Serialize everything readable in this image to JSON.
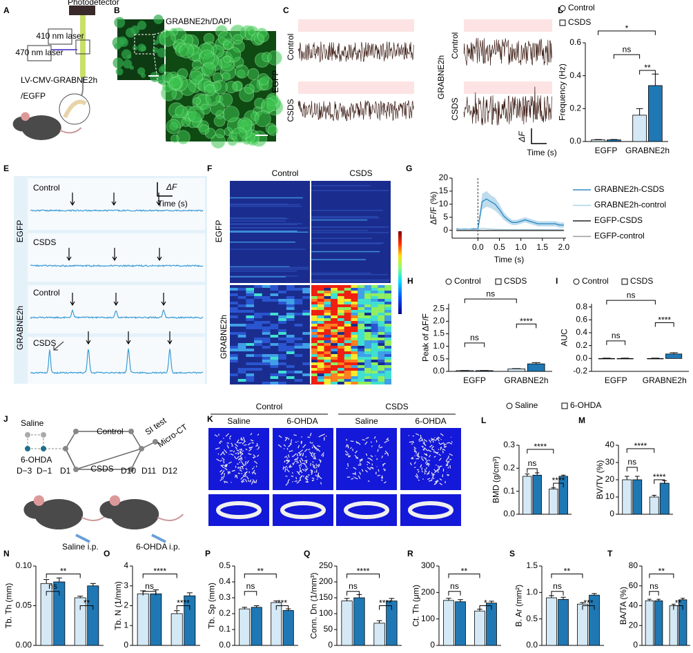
{
  "panel_letters": [
    "A",
    "B",
    "C",
    "D",
    "E",
    "F",
    "G",
    "H",
    "I",
    "J",
    "K",
    "L",
    "M",
    "N",
    "O",
    "P",
    "Q",
    "R",
    "S",
    "T"
  ],
  "panel_a": {
    "photodetector": "Photodetector",
    "laser_410": "410 nm laser",
    "laser_470": "470 nm laser",
    "construct": "LV-CMV-GRABNE2h",
    "control_construct": "/EGFP"
  },
  "panel_b": {
    "sensor": "GRABNE2h",
    "stain": "/DAPI"
  },
  "panel_c": {
    "groups": [
      "EGFP",
      "GRABNE2h"
    ],
    "rows": [
      "Control",
      "CSDS",
      "Control",
      "CSDS"
    ],
    "scale_y": "ΔF",
    "scale_x": "Time (s)"
  },
  "panel_e": {
    "groups": [
      "EGFP",
      "GRABNE2h"
    ],
    "rows": [
      "Control",
      "CSDS",
      "Control",
      "CSDS"
    ],
    "scale_y": "ΔF",
    "scale_x": "Time (s)"
  },
  "panel_f": {
    "columns": [
      "Control",
      "CSDS"
    ],
    "rows": [
      "EGFP",
      "GRABNE2h"
    ]
  },
  "panel_j": {
    "pretreatments": [
      "Saline",
      "6-OHDA"
    ],
    "arms": [
      "Control",
      "CSDS"
    ],
    "tests": [
      "SI test",
      "Micro-CT"
    ],
    "days": [
      "D−3",
      "D−1",
      "D1",
      "D10",
      "D11",
      "D12"
    ],
    "injections": [
      "Saline i.p.",
      "6-OHDA i.p."
    ]
  },
  "panel_k": {
    "groups": [
      "Control",
      "CSDS"
    ],
    "treatments": [
      "Saline",
      "6-OHDA",
      "Saline",
      "6-OHDA"
    ]
  },
  "chart_data": [
    {
      "type": "bar",
      "ylabel": "Frequency (Hz)",
      "categories": [
        "EGFP",
        "GRABNE2h"
      ],
      "series": [
        {
          "name": "Control",
          "color": "#d4e9f5",
          "values": [
            0.01,
            0.16
          ],
          "errors": [
            0.002,
            0.04
          ]
        },
        {
          "name": "CSDS",
          "color": "#1f78b4",
          "values": [
            0.01,
            0.34
          ],
          "errors": [
            0.002,
            0.07
          ]
        }
      ],
      "ylim": [
        0,
        0.6
      ],
      "yticks": [
        {
          "value": 0,
          "label": "0.0"
        },
        0.2,
        0.4,
        0.6
      ],
      "annotations": [
        "ns",
        "**",
        "*"
      ]
    },
    {
      "type": "line",
      "ylabel": "ΔF/F (%)",
      "xlabel": "Time (s)",
      "x": [
        -0.5,
        -0.4,
        -0.3,
        -0.2,
        -0.1,
        0,
        0.1,
        0.2,
        0.3,
        0.4,
        0.5,
        0.6,
        0.7,
        0.8,
        0.9,
        1,
        1.1,
        1.2,
        1.3,
        1.4,
        1.5,
        1.6,
        1.7,
        1.8,
        1.9,
        2
      ],
      "series": [
        {
          "name": "GRABNE2h-CSDS",
          "color": "#2b8cc4",
          "values": [
            0.5,
            0.3,
            0.4,
            0.3,
            0.5,
            0.4,
            11,
            12,
            11,
            10,
            8,
            5.5,
            4,
            3,
            3,
            3.5,
            4,
            3.5,
            3,
            2.5,
            2.5,
            2.5,
            2.5,
            2.5,
            2,
            2
          ],
          "errors": [
            0.5,
            0.5,
            0.5,
            0.5,
            0.5,
            0.5,
            3,
            3,
            2.5,
            2.5,
            2,
            1.5,
            1.2,
            1,
            1,
            1,
            1,
            1,
            1,
            1,
            1,
            1,
            1,
            1,
            1,
            1
          ]
        },
        {
          "name": "GRABNE2h-control",
          "color": "#a9d3ea",
          "values": [
            0.3,
            0.3,
            0.3,
            0.3,
            0.3,
            0.3,
            0.8,
            0.6,
            0.5,
            0.4,
            0.4,
            0.3,
            0.3,
            0.3,
            0.3,
            0.3,
            0.3,
            0.3,
            0.3,
            0.3,
            0.3,
            0.3,
            0.3,
            0.3,
            0.3,
            0.3
          ]
        },
        {
          "name": "EGFP-CSDS",
          "color": "#222222",
          "values": [
            0,
            0,
            0,
            0,
            0,
            0,
            0,
            0,
            0,
            0,
            0,
            0,
            0,
            0,
            0,
            0,
            0,
            0,
            0,
            0,
            0,
            0,
            0,
            0,
            0,
            0
          ]
        },
        {
          "name": "EGFP-control",
          "color": "#999999",
          "values": [
            -0.2,
            -0.2,
            -0.2,
            -0.2,
            -0.2,
            -0.2,
            -0.2,
            -0.2,
            -0.2,
            -0.2,
            -0.2,
            -0.2,
            -0.2,
            -0.2,
            -0.2,
            -0.2,
            -0.2,
            -0.2,
            -0.2,
            -0.2,
            -0.2,
            -0.2,
            -0.2,
            -0.2,
            -0.2,
            -0.2
          ]
        }
      ],
      "xlim": [
        -0.6,
        2.05
      ],
      "xticks": [
        {
          "value": 0,
          "label": "0.0"
        },
        0.5,
        {
          "value": 1,
          "label": "1.0"
        },
        1.5,
        {
          "value": 2,
          "label": "2.0"
        }
      ],
      "ylim": [
        -3,
        20
      ],
      "yticks": [
        0,
        5,
        10,
        15,
        20
      ]
    },
    {
      "type": "bar",
      "ylabel": "Peak of ΔF/F",
      "categories": [
        "EGFP",
        "GRABNE2h"
      ],
      "series": [
        {
          "name": "Control",
          "color": "#d4e9f5",
          "values": [
            0.03,
            0.1
          ],
          "errors": [
            0.005,
            0.01
          ]
        },
        {
          "name": "CSDS",
          "color": "#1f78b4",
          "values": [
            0.03,
            0.3
          ],
          "errors": [
            0.005,
            0.05
          ]
        }
      ],
      "ylim": [
        0,
        2.7
      ],
      "yticks": [
        {
          "value": 0,
          "label": "0.0"
        },
        0.5,
        {
          "value": 1,
          "label": "1.0"
        },
        1.5,
        {
          "value": 2,
          "label": "2.0"
        },
        2.5
      ],
      "annotations": [
        "ns",
        "****",
        "ns"
      ]
    },
    {
      "type": "bar",
      "ylabel": "AUC",
      "categories": [
        "EGFP",
        "GRABNE2h"
      ],
      "series": [
        {
          "name": "Control",
          "color": "#d4e9f5",
          "values": [
            0,
            0
          ],
          "errors": [
            0.005,
            0.005
          ]
        },
        {
          "name": "CSDS",
          "color": "#1f78b4",
          "values": [
            0,
            0.07
          ],
          "errors": [
            0.005,
            0.02
          ]
        }
      ],
      "ylim": [
        -0.2,
        0.85
      ],
      "yticks": [
        -0.2,
        {
          "value": 0,
          "label": "0.0"
        },
        0.2,
        0.4,
        0.6,
        0.8
      ],
      "annotations": [
        "ns",
        "****",
        "ns"
      ]
    },
    {
      "type": "bar",
      "ylabel": "BMD (g/cm³)",
      "categories": [
        null,
        null
      ],
      "series": [
        {
          "name": "Saline",
          "color": "#d4e9f5",
          "values": [
            0.165,
            0.11
          ],
          "errors": [
            0.01,
            0.005
          ]
        },
        {
          "name": "6-OHDA",
          "color": "#1f78b4",
          "values": [
            0.17,
            0.165
          ],
          "errors": [
            0.01,
            0.005
          ]
        }
      ],
      "ylim": [
        0,
        0.3
      ],
      "yticks": [
        {
          "value": 0,
          "label": "0.0"
        },
        0.1,
        0.2,
        0.3
      ],
      "annotations": [
        "ns",
        "****",
        "****"
      ]
    },
    {
      "type": "bar",
      "ylabel": "BV/TV (%)",
      "categories": [
        null,
        null
      ],
      "series": [
        {
          "color": "#d4e9f5",
          "values": [
            20,
            10
          ],
          "errors": [
            2,
            1
          ]
        },
        {
          "color": "#1f78b4",
          "values": [
            20,
            18
          ],
          "errors": [
            2,
            1.5
          ]
        }
      ],
      "ylim": [
        0,
        40
      ],
      "yticks": [
        0,
        10,
        20,
        30,
        40
      ],
      "annotations": [
        "ns",
        "****",
        "****"
      ]
    },
    {
      "type": "bar",
      "ylabel": "Tb. Th (mm)",
      "categories": [
        null,
        null
      ],
      "series": [
        {
          "color": "#d4e9f5",
          "values": [
            0.078,
            0.06
          ],
          "errors": [
            0.005,
            0.002
          ]
        },
        {
          "color": "#1f78b4",
          "values": [
            0.08,
            0.075
          ],
          "errors": [
            0.005,
            0.003
          ]
        }
      ],
      "ylim": [
        0,
        0.1
      ],
      "yticks": [
        {
          "value": 0,
          "label": "0.00"
        },
        {
          "value": 0.05,
          "label": "0.05"
        },
        {
          "value": 0.1,
          "label": "0.10"
        }
      ],
      "annotations": [
        "ns",
        "**",
        "**"
      ]
    },
    {
      "type": "bar",
      "ylabel": "Tb. N (1/mm)",
      "categories": [
        null,
        null
      ],
      "series": [
        {
          "color": "#d4e9f5",
          "values": [
            2.6,
            1.6
          ],
          "errors": [
            0.15,
            0.15
          ]
        },
        {
          "color": "#1f78b4",
          "values": [
            2.6,
            2.5
          ],
          "errors": [
            0.2,
            0.15
          ]
        }
      ],
      "ylim": [
        0,
        4
      ],
      "yticks": [
        0,
        1,
        2,
        3,
        4
      ],
      "annotations": [
        "ns",
        "****",
        "****"
      ]
    },
    {
      "type": "bar",
      "ylabel": "Tb. Sp (mm)",
      "categories": [
        null,
        null
      ],
      "series": [
        {
          "color": "#d4e9f5",
          "values": [
            0.23,
            0.27
          ],
          "errors": [
            0.01,
            0.01
          ]
        },
        {
          "color": "#1f78b4",
          "values": [
            0.24,
            0.22
          ],
          "errors": [
            0.01,
            0.01
          ]
        }
      ],
      "ylim": [
        0,
        0.5
      ],
      "yticks": [
        {
          "value": 0,
          "label": "0.0"
        },
        0.1,
        0.2,
        0.3,
        0.4,
        0.5
      ],
      "annotations": [
        "ns",
        "***",
        "**"
      ]
    },
    {
      "type": "bar",
      "ylabel": "Conn. Dn (1/mm³)",
      "categories": [
        null,
        null
      ],
      "series": [
        {
          "color": "#d4e9f5",
          "values": [
            140,
            70
          ],
          "errors": [
            8,
            8
          ]
        },
        {
          "color": "#1f78b4",
          "values": [
            150,
            140
          ],
          "errors": [
            10,
            8
          ]
        }
      ],
      "ylim": [
        0,
        250
      ],
      "yticks": [
        0,
        50,
        100,
        150,
        200,
        250
      ],
      "annotations": [
        "ns",
        "****",
        "****"
      ]
    },
    {
      "type": "bar",
      "ylabel": "Ct. Th (μm)",
      "categories": [
        null,
        null
      ],
      "series": [
        {
          "color": "#d4e9f5",
          "values": [
            170,
            130
          ],
          "errors": [
            8,
            7
          ]
        },
        {
          "color": "#1f78b4",
          "values": [
            165,
            160
          ],
          "errors": [
            8,
            7
          ]
        }
      ],
      "ylim": [
        0,
        300
      ],
      "yticks": [
        0,
        100,
        200,
        300
      ],
      "annotations": [
        "ns",
        "*",
        "**"
      ]
    },
    {
      "type": "bar",
      "ylabel": "B. Ar (mm²)",
      "categories": [
        null,
        null
      ],
      "series": [
        {
          "color": "#d4e9f5",
          "values": [
            0.9,
            0.78
          ],
          "errors": [
            0.04,
            0.03
          ]
        },
        {
          "color": "#1f78b4",
          "values": [
            0.87,
            0.95
          ],
          "errors": [
            0.04,
            0.03
          ]
        }
      ],
      "ylim": [
        0,
        1.5
      ],
      "yticks": [
        {
          "value": 0,
          "label": "0.0"
        },
        0.5,
        {
          "value": 1,
          "label": "1.0"
        },
        1.5
      ],
      "annotations": [
        "ns",
        "***",
        "**"
      ]
    },
    {
      "type": "bar",
      "ylabel": "BA/TA (%)",
      "categories": [
        null,
        null
      ],
      "series": [
        {
          "color": "#d4e9f5",
          "values": [
            45,
            40
          ],
          "errors": [
            1.5,
            1.5
          ]
        },
        {
          "color": "#1f78b4",
          "values": [
            45,
            46
          ],
          "errors": [
            1.5,
            1.5
          ]
        }
      ],
      "ylim": [
        0,
        80
      ],
      "yticks": [
        0,
        20,
        40,
        60,
        80
      ],
      "annotations": [
        "ns",
        "**",
        "**"
      ]
    }
  ]
}
